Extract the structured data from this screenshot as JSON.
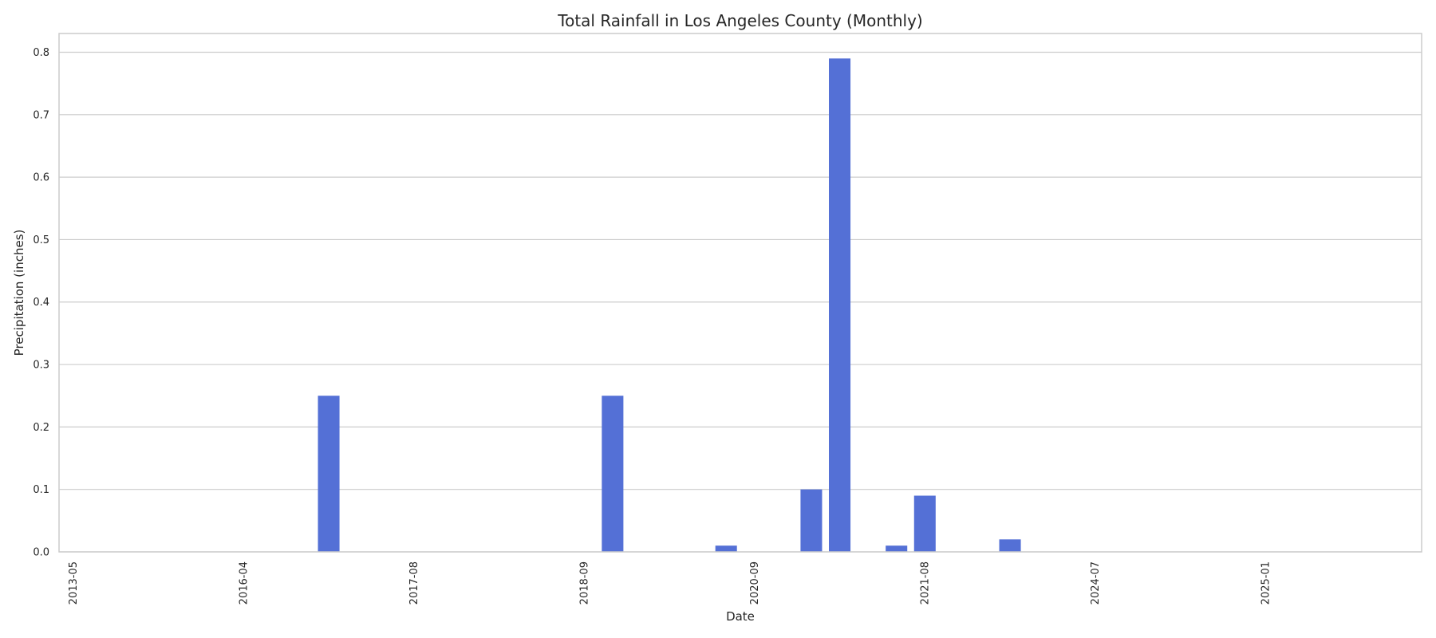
{
  "chart_data": {
    "type": "bar",
    "title": "Total Rainfall in Los Angeles County (Monthly)",
    "xlabel": "Date",
    "ylabel": "Precipitation (inches)",
    "ylim": [
      0,
      0.83
    ],
    "yticks": [
      "0.0",
      "0.1",
      "0.2",
      "0.3",
      "0.4",
      "0.5",
      "0.6",
      "0.7",
      "0.8"
    ],
    "grid": "horizontal",
    "bar_color": "#5470d6",
    "categories": [
      "2013-05",
      "",
      "",
      "",
      "",
      "",
      "2016-04",
      "",
      "",
      "",
      "",
      "",
      "2017-08",
      "",
      "",
      "",
      "",
      "",
      "2018-09",
      "",
      "",
      "",
      "",
      "",
      "2020-09",
      "",
      "",
      "",
      "",
      "",
      "2021-08",
      "",
      "",
      "",
      "",
      "",
      "2024-07",
      "",
      "",
      "",
      "",
      "",
      "2025-01",
      "",
      "",
      "",
      "",
      ""
    ],
    "values": [
      0,
      0,
      0,
      0,
      0,
      0,
      0,
      0,
      0,
      0.25,
      0,
      0,
      0,
      0,
      0,
      0,
      0,
      0,
      0,
      0.25,
      0,
      0,
      0,
      0.01,
      0,
      0,
      0.1,
      0.79,
      0,
      0.01,
      0.09,
      0,
      0,
      0.02,
      0,
      0,
      0,
      0,
      0,
      0,
      0,
      0,
      0,
      0,
      0,
      0,
      0,
      0
    ]
  }
}
